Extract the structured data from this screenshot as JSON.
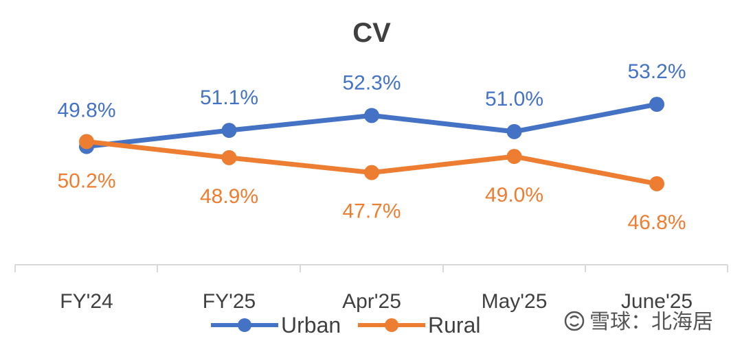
{
  "chart_data": {
    "type": "line",
    "title": "CV",
    "categories": [
      "FY'24",
      "FY'25",
      "Apr'25",
      "May'25",
      "June'25"
    ],
    "series": [
      {
        "name": "Urban",
        "values": [
          49.8,
          51.1,
          52.3,
          51.0,
          53.2
        ],
        "labels": [
          "49.8%",
          "51.1%",
          "52.3%",
          "51.0%",
          "53.2%"
        ],
        "color": "#4472C4"
      },
      {
        "name": "Rural",
        "values": [
          50.2,
          48.9,
          47.7,
          49.0,
          46.8
        ],
        "labels": [
          "50.2%",
          "48.9%",
          "47.7%",
          "49.0%",
          "46.8%"
        ],
        "color": "#ED7D31"
      }
    ],
    "grid": false,
    "legend": "bottom"
  },
  "watermark": {
    "text": "雪球：北海居",
    "icon": "snowball-logo-icon"
  }
}
